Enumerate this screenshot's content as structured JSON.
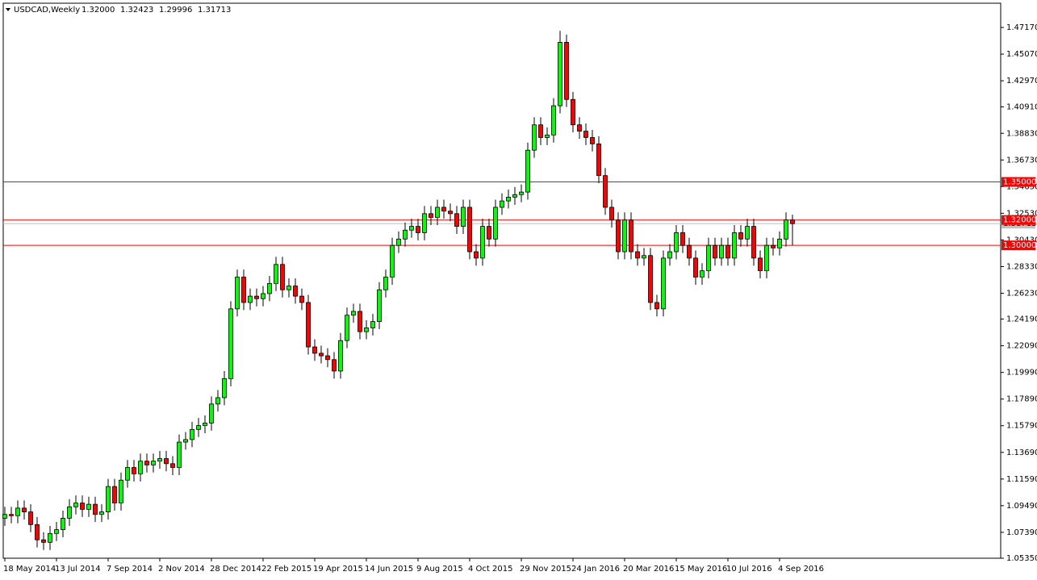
{
  "chart_data": {
    "type": "candlestick",
    "title": "USDCAD,Weekly",
    "header_labels": [
      "1.32000",
      "1.32423",
      "1.29996",
      "1.31713"
    ],
    "categories": [
      "18 May 2014",
      null,
      null,
      null,
      null,
      null,
      null,
      null,
      "13 Jul 2014",
      null,
      null,
      null,
      null,
      null,
      null,
      null,
      "7 Sep 2014",
      null,
      null,
      null,
      null,
      null,
      null,
      null,
      "2 Nov 2014",
      null,
      null,
      null,
      null,
      null,
      null,
      null,
      "28 Dec 2014",
      null,
      null,
      null,
      null,
      null,
      null,
      null,
      "22 Feb 2015",
      null,
      null,
      null,
      null,
      null,
      null,
      null,
      "19 Apr 2015",
      null,
      null,
      null,
      null,
      null,
      null,
      null,
      "14 Jun 2015",
      null,
      null,
      null,
      null,
      null,
      null,
      null,
      "9 Aug 2015",
      null,
      null,
      null,
      null,
      null,
      null,
      null,
      "4 Oct 2015",
      null,
      null,
      null,
      null,
      null,
      null,
      null,
      "29 Nov 2015",
      null,
      null,
      null,
      null,
      null,
      null,
      null,
      "24 Jan 2016",
      null,
      null,
      null,
      null,
      null,
      null,
      null,
      "20 Mar 2016",
      null,
      null,
      null,
      null,
      null,
      null,
      null,
      "15 May 2016",
      null,
      null,
      null,
      null,
      null,
      null,
      null,
      "10 Jul 2016",
      null,
      null,
      null,
      null,
      null,
      null,
      null,
      "4 Sep 2016",
      null,
      null
    ],
    "open": [
      1.085,
      1.088,
      1.087,
      1.093,
      1.09,
      1.08,
      1.068,
      1.066,
      1.073,
      1.076,
      1.085,
      1.094,
      1.097,
      1.092,
      1.096,
      1.088,
      1.09,
      1.11,
      1.097,
      1.115,
      1.125,
      1.12,
      1.13,
      1.127,
      1.13,
      1.132,
      1.128,
      1.125,
      1.145,
      1.147,
      1.155,
      1.158,
      1.16,
      1.175,
      1.18,
      1.195,
      1.25,
      1.275,
      1.255,
      1.26,
      1.258,
      1.262,
      1.27,
      1.285,
      1.265,
      1.268,
      1.26,
      1.255,
      1.22,
      1.215,
      1.213,
      1.21,
      1.201,
      1.225,
      1.245,
      1.248,
      1.232,
      1.235,
      1.24,
      1.265,
      1.275,
      1.3,
      1.305,
      1.312,
      1.315,
      1.31,
      1.325,
      1.322,
      1.33,
      1.327,
      1.325,
      1.315,
      1.33,
      1.295,
      1.29,
      1.315,
      1.305,
      1.33,
      1.335,
      1.338,
      1.34,
      1.342,
      1.375,
      1.395,
      1.385,
      1.387,
      1.41,
      1.46,
      1.415,
      1.395,
      1.39,
      1.385,
      1.38,
      1.355,
      1.33,
      1.32,
      1.295,
      1.32,
      1.295,
      1.29,
      1.292,
      1.255,
      1.25,
      1.29,
      1.295,
      1.31,
      1.3,
      1.29,
      1.275,
      1.28,
      1.3,
      1.29,
      1.3,
      1.29,
      1.31,
      1.305,
      1.315,
      1.29,
      1.28,
      1.3,
      1.298,
      1.305,
      1.32
    ],
    "high": [
      1.094,
      1.094,
      1.099,
      1.099,
      1.096,
      1.086,
      1.074,
      1.079,
      1.082,
      1.091,
      1.1,
      1.103,
      1.103,
      1.102,
      1.102,
      1.096,
      1.116,
      1.116,
      1.121,
      1.131,
      1.131,
      1.136,
      1.136,
      1.136,
      1.138,
      1.138,
      1.134,
      1.151,
      1.153,
      1.161,
      1.164,
      1.166,
      1.181,
      1.186,
      1.201,
      1.256,
      1.281,
      1.281,
      1.266,
      1.266,
      1.268,
      1.276,
      1.291,
      1.291,
      1.274,
      1.274,
      1.266,
      1.261,
      1.226,
      1.221,
      1.219,
      1.216,
      1.231,
      1.251,
      1.254,
      1.254,
      1.241,
      1.246,
      1.271,
      1.281,
      1.306,
      1.311,
      1.318,
      1.321,
      1.321,
      1.331,
      1.331,
      1.336,
      1.336,
      1.333,
      1.331,
      1.336,
      1.336,
      1.301,
      1.321,
      1.321,
      1.336,
      1.341,
      1.344,
      1.346,
      1.348,
      1.381,
      1.401,
      1.401,
      1.393,
      1.416,
      1.469,
      1.466,
      1.421,
      1.401,
      1.396,
      1.391,
      1.386,
      1.361,
      1.336,
      1.326,
      1.326,
      1.326,
      1.301,
      1.298,
      1.298,
      1.261,
      1.296,
      1.301,
      1.316,
      1.316,
      1.306,
      1.296,
      1.286,
      1.306,
      1.306,
      1.306,
      1.306,
      1.316,
      1.316,
      1.321,
      1.321,
      1.296,
      1.306,
      1.306,
      1.311,
      1.326,
      1.32423
    ],
    "low": [
      1.079,
      1.081,
      1.081,
      1.084,
      1.074,
      1.062,
      1.06,
      1.06,
      1.067,
      1.07,
      1.079,
      1.088,
      1.086,
      1.086,
      1.082,
      1.082,
      1.084,
      1.091,
      1.091,
      1.109,
      1.114,
      1.114,
      1.121,
      1.121,
      1.124,
      1.122,
      1.119,
      1.119,
      1.139,
      1.141,
      1.149,
      1.152,
      1.154,
      1.169,
      1.174,
      1.189,
      1.244,
      1.249,
      1.249,
      1.252,
      1.252,
      1.256,
      1.264,
      1.259,
      1.259,
      1.254,
      1.249,
      1.214,
      1.209,
      1.207,
      1.204,
      1.195,
      1.195,
      1.219,
      1.239,
      1.226,
      1.226,
      1.229,
      1.234,
      1.259,
      1.269,
      1.294,
      1.299,
      1.306,
      1.304,
      1.304,
      1.316,
      1.316,
      1.321,
      1.319,
      1.309,
      1.309,
      1.289,
      1.284,
      1.284,
      1.299,
      1.299,
      1.324,
      1.329,
      1.332,
      1.334,
      1.336,
      1.369,
      1.379,
      1.379,
      1.381,
      1.404,
      1.409,
      1.389,
      1.384,
      1.379,
      1.374,
      1.349,
      1.324,
      1.314,
      1.289,
      1.289,
      1.289,
      1.284,
      1.284,
      1.249,
      1.244,
      1.244,
      1.284,
      1.289,
      1.294,
      1.284,
      1.269,
      1.269,
      1.274,
      1.284,
      1.284,
      1.284,
      1.284,
      1.299,
      1.299,
      1.284,
      1.274,
      1.274,
      1.292,
      1.292,
      1.299,
      1.29996
    ],
    "close": [
      1.088,
      1.087,
      1.093,
      1.09,
      1.08,
      1.068,
      1.066,
      1.073,
      1.076,
      1.085,
      1.094,
      1.097,
      1.092,
      1.096,
      1.088,
      1.09,
      1.11,
      1.097,
      1.115,
      1.125,
      1.12,
      1.13,
      1.127,
      1.13,
      1.132,
      1.128,
      1.125,
      1.145,
      1.147,
      1.155,
      1.158,
      1.16,
      1.175,
      1.18,
      1.195,
      1.25,
      1.275,
      1.255,
      1.26,
      1.258,
      1.262,
      1.27,
      1.285,
      1.265,
      1.268,
      1.26,
      1.255,
      1.22,
      1.215,
      1.213,
      1.21,
      1.201,
      1.225,
      1.245,
      1.248,
      1.232,
      1.235,
      1.24,
      1.265,
      1.275,
      1.3,
      1.305,
      1.312,
      1.315,
      1.31,
      1.325,
      1.322,
      1.33,
      1.327,
      1.325,
      1.315,
      1.33,
      1.295,
      1.29,
      1.315,
      1.305,
      1.33,
      1.335,
      1.338,
      1.34,
      1.342,
      1.375,
      1.395,
      1.385,
      1.387,
      1.41,
      1.46,
      1.415,
      1.395,
      1.39,
      1.385,
      1.38,
      1.355,
      1.33,
      1.32,
      1.295,
      1.32,
      1.295,
      1.29,
      1.292,
      1.255,
      1.25,
      1.29,
      1.295,
      1.31,
      1.3,
      1.29,
      1.275,
      1.28,
      1.3,
      1.29,
      1.3,
      1.29,
      1.31,
      1.305,
      1.315,
      1.29,
      1.28,
      1.3,
      1.298,
      1.305,
      1.32,
      1.31713
    ],
    "up_color": "#00ff00",
    "down_color": "#ff0000",
    "ylim": [
      1.0535,
      1.4908
    ],
    "yticks": [
      {
        "value": 1.4717,
        "label": "1.47170"
      },
      {
        "value": 1.4507,
        "label": "1.45070"
      },
      {
        "value": 1.4297,
        "label": "1.42970"
      },
      {
        "value": 1.4091,
        "label": "1.40910"
      },
      {
        "value": 1.3883,
        "label": "1.38830"
      },
      {
        "value": 1.3673,
        "label": "1.36730"
      },
      {
        "value": 1.3463,
        "label": "1.34630"
      },
      {
        "value": 1.3253,
        "label": "1.32530"
      },
      {
        "value": 1.3043,
        "label": "1.30430"
      },
      {
        "value": 1.2833,
        "label": "1.28330"
      },
      {
        "value": 1.2623,
        "label": "1.26230"
      },
      {
        "value": 1.2419,
        "label": "1.24190"
      },
      {
        "value": 1.2209,
        "label": "1.22090"
      },
      {
        "value": 1.1999,
        "label": "1.19990"
      },
      {
        "value": 1.1789,
        "label": "1.17890"
      },
      {
        "value": 1.1579,
        "label": "1.15790"
      },
      {
        "value": 1.1369,
        "label": "1.13690"
      },
      {
        "value": 1.1159,
        "label": "1.11590"
      },
      {
        "value": 1.0949,
        "label": "1.09490"
      },
      {
        "value": 1.0739,
        "label": "1.07390"
      },
      {
        "value": 1.0535,
        "label": "1.05350"
      }
    ],
    "current_price": {
      "value": 1.31713,
      "label": "1.31713"
    },
    "levels": [
      {
        "value": 1.35,
        "label": "1.35000",
        "color": "#ff0000"
      },
      {
        "value": 1.32,
        "label": "1.32000",
        "color": "#ff0000"
      },
      {
        "value": 1.3,
        "label": "1.30000",
        "color": "#ff0000"
      }
    ]
  }
}
